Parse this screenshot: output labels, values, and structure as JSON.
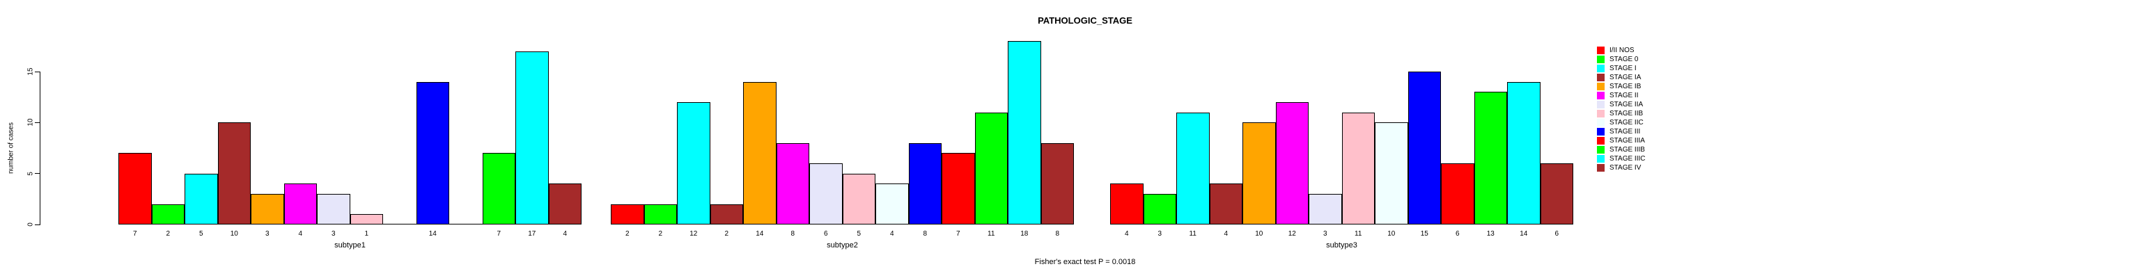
{
  "title": "PATHOLOGIC_STAGE",
  "annotation": "Fisher's exact test P = 0.0018",
  "y_axis": {
    "label": "number of cases",
    "ticks": [
      "0",
      "5",
      "10",
      "15"
    ]
  },
  "chart_data": {
    "type": "bar",
    "title": "PATHOLOGIC_STAGE",
    "xlabel": "",
    "ylabel": "number of cases",
    "ylim": [
      0,
      15
    ],
    "grid": false,
    "legend_position": "right",
    "annotation": "Fisher's exact test P = 0.0018",
    "categories": [
      "I/II NOS",
      "STAGE 0",
      "STAGE I",
      "STAGE IA",
      "STAGE IB",
      "STAGE II",
      "STAGE IIA",
      "STAGE IIB",
      "STAGE IIC",
      "STAGE III",
      "STAGE IIIA",
      "STAGE IIIB",
      "STAGE IIIC",
      "STAGE IV"
    ],
    "colors": [
      "#FF0000",
      "#00FF00",
      "#00FFFF",
      "#A52A2A",
      "#FFA500",
      "#FF00FF",
      "#E6E6FA",
      "#FFC0CB",
      "#F0FFFF",
      "#0000FF",
      "#FF0000",
      "#00FF00",
      "#00FFFF",
      "#A52A2A"
    ],
    "groups": [
      {
        "label": "subtype1",
        "values": [
          7,
          2,
          5,
          10,
          3,
          4,
          3,
          1,
          0,
          14,
          0,
          7,
          17,
          4
        ]
      },
      {
        "label": "subtype2",
        "values": [
          2,
          2,
          12,
          2,
          14,
          8,
          6,
          5,
          4,
          8,
          7,
          11,
          18,
          8
        ]
      },
      {
        "label": "subtype3",
        "values": [
          4,
          3,
          11,
          4,
          10,
          12,
          3,
          11,
          10,
          15,
          6,
          13,
          14,
          6
        ]
      }
    ],
    "value_labels_shown": true,
    "zero_values_unlabeled": true
  }
}
